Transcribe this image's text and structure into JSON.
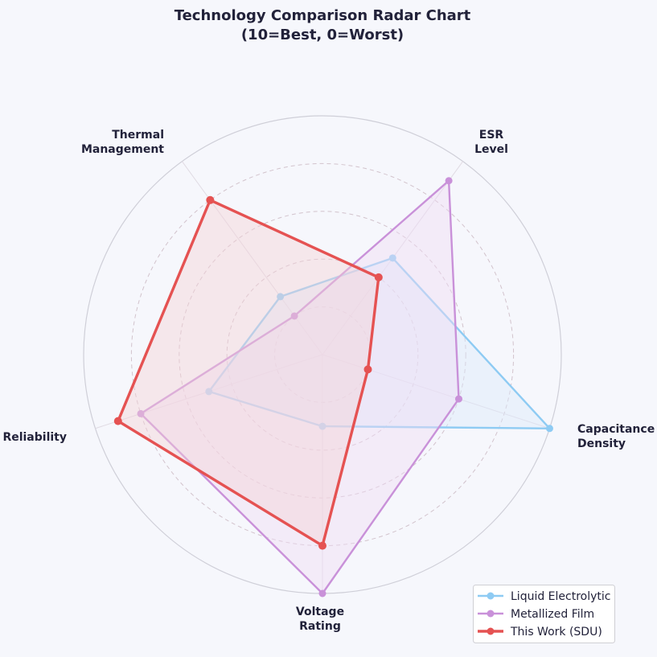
{
  "chart_data": {
    "type": "radar",
    "title_lines": [
      "Technology Comparison Radar Chart",
      "(10=Best, 0=Worst)"
    ],
    "axes": [
      {
        "lines": [
          "Capacitance",
          "Density"
        ]
      },
      {
        "lines": [
          "ESR",
          "Level"
        ]
      },
      {
        "lines": [
          "Thermal",
          "Management"
        ]
      },
      {
        "lines": [
          "Reliability"
        ]
      },
      {
        "lines": [
          "Voltage",
          "Rating"
        ]
      }
    ],
    "range": [
      0,
      10
    ],
    "rings": [
      2,
      4,
      6,
      8,
      10
    ],
    "grid": true,
    "legend_position": "bottom-right",
    "series": [
      {
        "name": "Liquid Electrolytic",
        "color": "#8ecbf3",
        "fill": "#dbe9fb",
        "values": [
          10,
          5,
          3,
          5,
          3
        ]
      },
      {
        "name": "Metallized Film",
        "color": "#c991d9",
        "fill": "#efdcf5",
        "values": [
          6,
          9,
          2,
          8,
          10
        ]
      },
      {
        "name": "This Work (SDU)",
        "color": "#e55252",
        "fill": "#f4d2d8",
        "values": [
          2,
          4,
          8,
          9,
          8
        ]
      }
    ]
  }
}
